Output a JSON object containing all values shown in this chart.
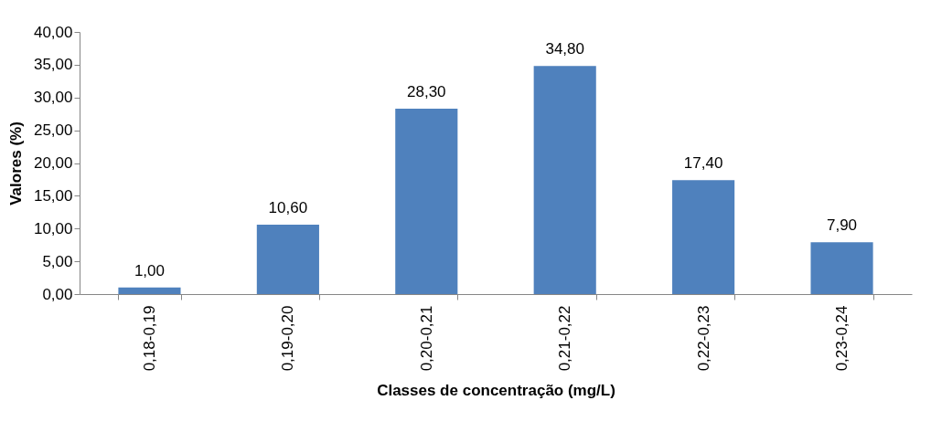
{
  "chart_data": {
    "type": "bar",
    "xlabel": "Classes de concentração (mg/L)",
    "ylabel": "Valores (%)",
    "categories": [
      "0,18-0,19",
      "0,19-0,20",
      "0,20-0,21",
      "0,21-0,22",
      "0,22-0,23",
      "0,23-0,24"
    ],
    "values": [
      1.0,
      10.6,
      28.3,
      34.8,
      17.4,
      7.9
    ],
    "value_labels": [
      "1,00",
      "10,60",
      "28,30",
      "34,80",
      "17,40",
      "7,90"
    ],
    "color": "#4f81bd",
    "ylim": [
      0,
      40
    ],
    "yticks": [
      {
        "value": 0,
        "label": "0,00"
      },
      {
        "value": 5,
        "label": "5,00"
      },
      {
        "value": 10,
        "label": "10,00"
      },
      {
        "value": 15,
        "label": "15,00"
      },
      {
        "value": 20,
        "label": "20,00"
      },
      {
        "value": 25,
        "label": "25,00"
      },
      {
        "value": 30,
        "label": "30,00"
      },
      {
        "value": 35,
        "label": "35,00"
      },
      {
        "value": 40,
        "label": "40,00"
      }
    ],
    "grid": false
  }
}
